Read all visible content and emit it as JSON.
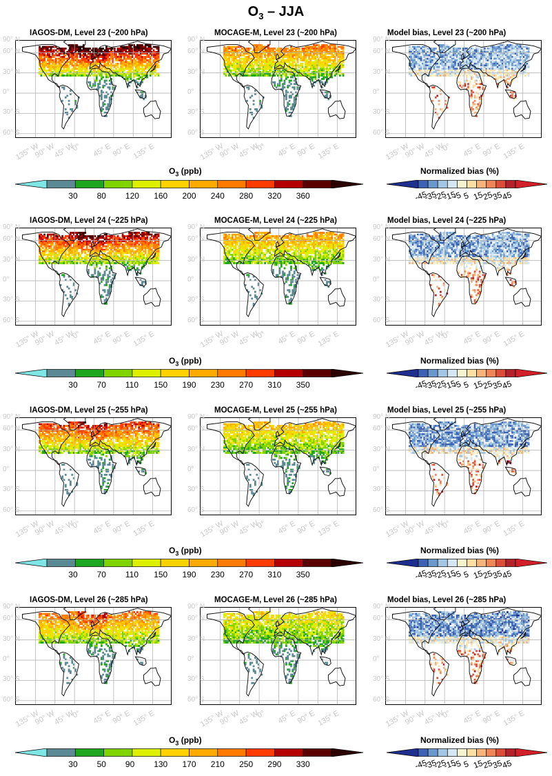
{
  "figure": {
    "title": "O",
    "title_sub": "3",
    "title_rest": " – JJA"
  },
  "axes": {
    "lat_labels": [
      "90° N",
      "60° N",
      "30° N",
      "0°",
      "30° S",
      "60° S"
    ],
    "lon_labels": [
      "135° W",
      "90° W",
      "45° W",
      "0°",
      "45° E",
      "90° E",
      "135° E"
    ]
  },
  "rows": [
    {
      "level": 23,
      "panels": [
        "IAGOS-DM, Level 23 (~200 hPa)",
        "MOCAGE-M, Level 23 (~200 hPa)",
        "Model bias, Level 23 (~200 hPa)"
      ],
      "o3_colorbar": {
        "title": "O",
        "title_sub": "3",
        "title_rest": " (ppb)",
        "ticks": [
          "30",
          "80",
          "120",
          "160",
          "200",
          "240",
          "280",
          "320",
          "360"
        ]
      },
      "bias_colorbar": {
        "title": "Normalized bias (%)",
        "ticks": [
          "-45",
          "-35",
          "-25",
          "-15",
          "-5",
          "5",
          "15",
          "25",
          "35",
          "45"
        ]
      }
    },
    {
      "level": 24,
      "panels": [
        "IAGOS-DM, Level 24 (~225 hPa)",
        "MOCAGE-M, Level 24 (~225 hPa)",
        "Model bias, Level 24 (~225 hPa)"
      ],
      "o3_colorbar": {
        "title": "O",
        "title_sub": "3",
        "title_rest": " (ppb)",
        "ticks": [
          "30",
          "70",
          "110",
          "150",
          "190",
          "230",
          "270",
          "310",
          "350"
        ]
      },
      "bias_colorbar": {
        "title": "Normalized bias (%)",
        "ticks": [
          "-45",
          "-35",
          "-25",
          "-15",
          "-5",
          "5",
          "15",
          "25",
          "35",
          "45"
        ]
      }
    },
    {
      "level": 25,
      "panels": [
        "IAGOS-DM, Level 25 (~255 hPa)",
        "MOCAGE-M, Level 25 (~255 hPa)",
        "Model bias, Level 25 (~255 hPa)"
      ],
      "o3_colorbar": {
        "title": "O",
        "title_sub": "3",
        "title_rest": " (ppb)",
        "ticks": [
          "30",
          "70",
          "110",
          "150",
          "190",
          "230",
          "270",
          "310",
          "350"
        ]
      },
      "bias_colorbar": {
        "title": "Normalized bias (%)",
        "ticks": [
          "-45",
          "-35",
          "-25",
          "-15",
          "-5",
          "5",
          "15",
          "25",
          "35",
          "45"
        ]
      }
    },
    {
      "level": 26,
      "panels": [
        "IAGOS-DM, Level 26 (~285 hPa)",
        "MOCAGE-M, Level 26 (~285 hPa)",
        "Model bias, Level 26 (~285 hPa)"
      ],
      "o3_colorbar": {
        "title": "O",
        "title_sub": "3",
        "title_rest": " (ppb)",
        "ticks": [
          "30",
          "50",
          "90",
          "130",
          "170",
          "210",
          "250",
          "290",
          "330"
        ]
      },
      "bias_colorbar": {
        "title": "Normalized bias (%)",
        "ticks": [
          "-45",
          "-35",
          "-25",
          "-15",
          "-5",
          "5",
          "15",
          "25",
          "35",
          "45"
        ]
      }
    }
  ],
  "colors": {
    "o3_scale": [
      "#7fe5e5",
      "#5b8a94",
      "#1ea61e",
      "#7fd400",
      "#dcf000",
      "#ffd200",
      "#ffaa00",
      "#ff7a00",
      "#ff3c00",
      "#b40000",
      "#5a0000",
      "#2a0000"
    ],
    "bias_scale": [
      "#1f2f8f",
      "#3d62b3",
      "#6a98cc",
      "#a3c6e2",
      "#d3e6f2",
      "#f6f3cf",
      "#fbdfa3",
      "#f7b47a",
      "#ef8559",
      "#dc4c3a",
      "#b3222a",
      "#d2202a"
    ],
    "grid": "#b4b4b4",
    "coast": "#000000",
    "axis_label": "#c8c8c8"
  }
}
